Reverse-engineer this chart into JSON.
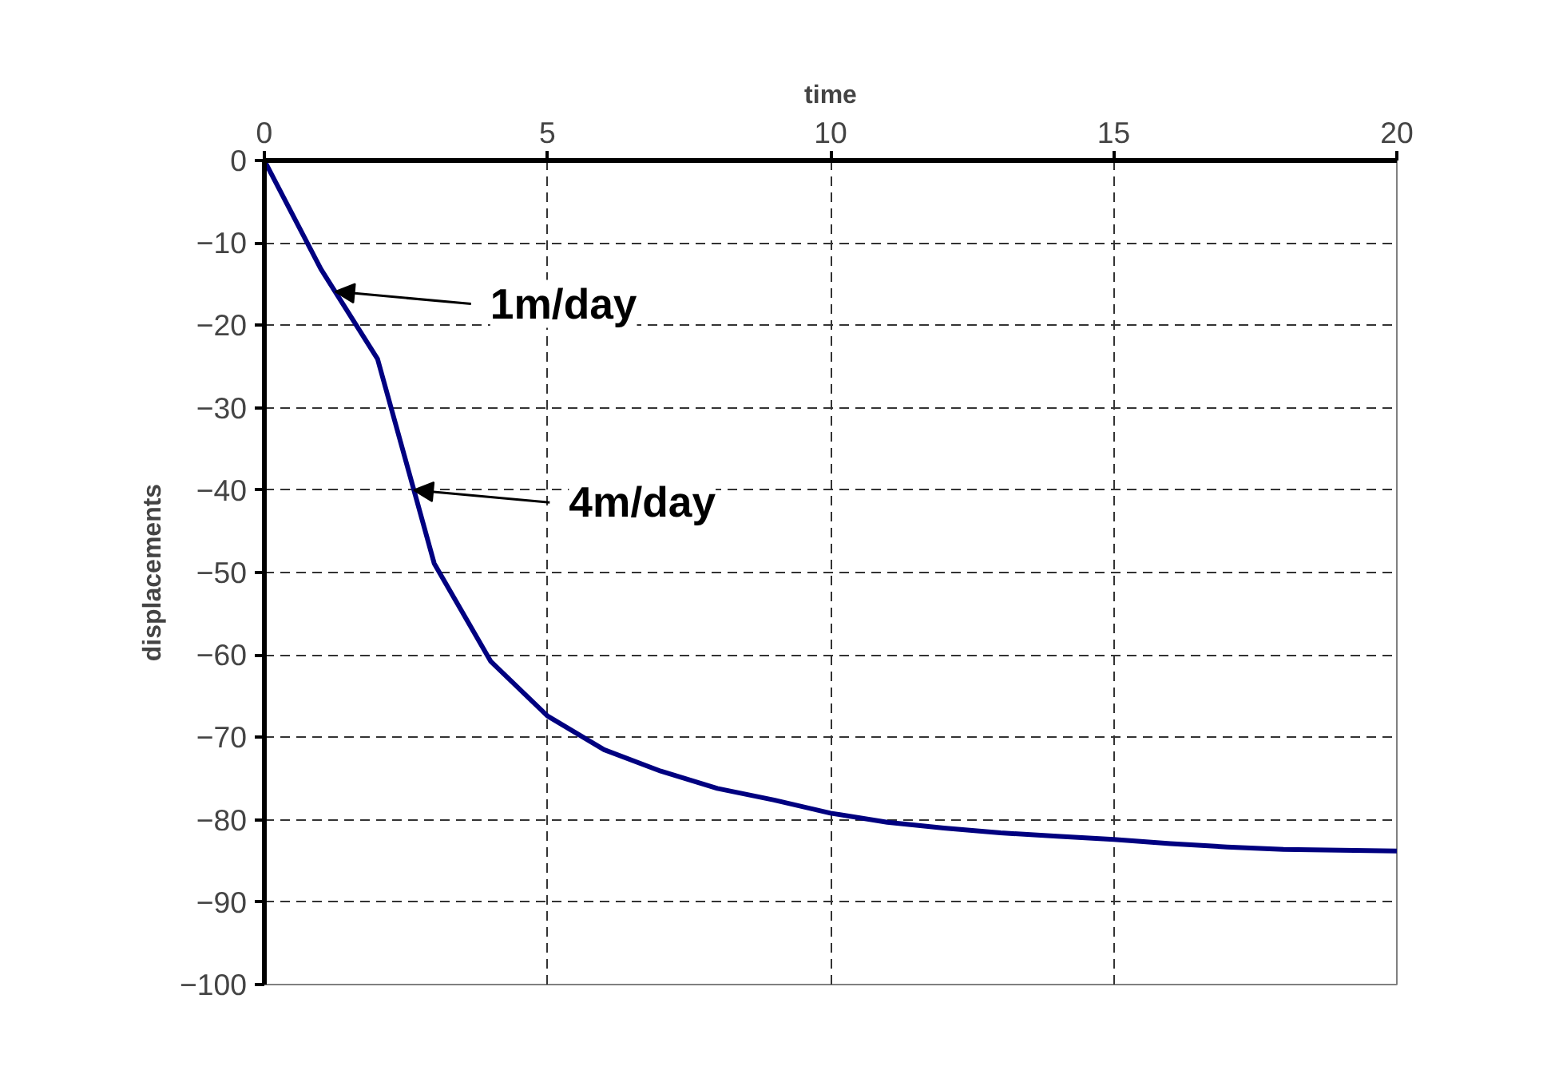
{
  "chart_data": {
    "type": "line",
    "xlabel": "time",
    "ylabel": "displacements",
    "x": [
      0,
      1,
      2,
      3,
      4,
      5,
      6,
      7,
      8,
      9,
      10,
      11,
      12,
      13,
      14,
      15,
      16,
      17,
      18,
      19,
      20
    ],
    "series": [
      {
        "color": "#000080",
        "values": [
          0,
          -13.2,
          -24.1,
          -48.9,
          -60.8,
          -67.4,
          -71.5,
          -74.1,
          -76.2,
          -77.6,
          -79.2,
          -80.3,
          -81,
          -81.6,
          -82,
          -82.4,
          -82.9,
          -83.3,
          -83.6,
          -83.7,
          -83.8
        ]
      }
    ],
    "xlim": [
      0,
      20
    ],
    "xticks": [
      0,
      5,
      10,
      15,
      20
    ],
    "ylim": [
      -100,
      0
    ],
    "yticks": [
      0,
      -10,
      -20,
      -30,
      -40,
      -50,
      -60,
      -70,
      -80,
      -90,
      -100
    ],
    "grid": true,
    "marker": "none",
    "line_style": "solid",
    "annotations": [
      {
        "text": "1m/day",
        "x": 1.25,
        "y": -15.9
      },
      {
        "text": "4m/day",
        "x": 2.64,
        "y": -40
      }
    ]
  }
}
